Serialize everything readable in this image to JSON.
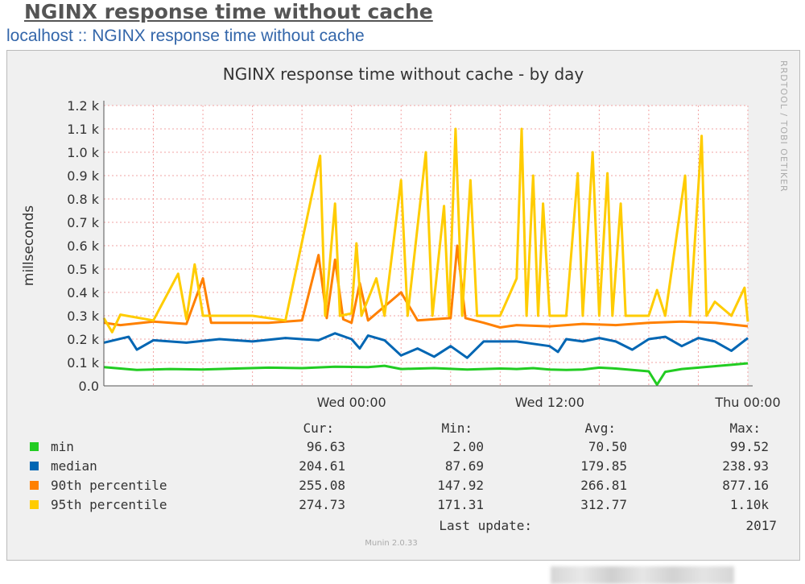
{
  "page": {
    "heading": "NGINX response time without cache",
    "breadcrumb_host": "localhost",
    "breadcrumb_sep": " :: ",
    "breadcrumb_page": "NGINX response time without cache"
  },
  "chart_data": {
    "type": "line",
    "title": "NGINX response time without cache - by day",
    "ylabel": "millseconds",
    "watermark": "RRDTOOL / TOBI OETIKER",
    "footer": "Munin 2.0.33",
    "ylim": [
      0,
      1200
    ],
    "y_ticks": [
      {
        "v": 0,
        "label": "0.0"
      },
      {
        "v": 100,
        "label": "0.1 k"
      },
      {
        "v": 200,
        "label": "0.2 k"
      },
      {
        "v": 300,
        "label": "0.3 k"
      },
      {
        "v": 400,
        "label": "0.4 k"
      },
      {
        "v": 500,
        "label": "0.5 k"
      },
      {
        "v": 600,
        "label": "0.6 k"
      },
      {
        "v": 700,
        "label": "0.7 k"
      },
      {
        "v": 800,
        "label": "0.8 k"
      },
      {
        "v": 900,
        "label": "0.9 k"
      },
      {
        "v": 1000,
        "label": "1.0 k"
      },
      {
        "v": 1100,
        "label": "1.1 k"
      },
      {
        "v": 1200,
        "label": "1.2 k"
      }
    ],
    "xlim": [
      -15,
      24
    ],
    "x_unit": "hours relative to Wed 00:00",
    "x_ticks": [
      {
        "v": 0,
        "label": "Wed 00:00"
      },
      {
        "v": 12,
        "label": "Wed 12:00"
      },
      {
        "v": 24,
        "label": "Thu 00:00"
      }
    ],
    "x_minor_step": 3,
    "series": [
      {
        "name": "min",
        "color": "#22cc22",
        "points": [
          [
            -15,
            80
          ],
          [
            -13,
            68
          ],
          [
            -11,
            72
          ],
          [
            -9,
            70
          ],
          [
            -7,
            74
          ],
          [
            -5,
            78
          ],
          [
            -3,
            76
          ],
          [
            -1,
            82
          ],
          [
            1,
            80
          ],
          [
            2,
            86
          ],
          [
            3,
            72
          ],
          [
            5,
            76
          ],
          [
            7,
            70
          ],
          [
            9,
            74
          ],
          [
            10,
            72
          ],
          [
            11,
            76
          ],
          [
            12,
            70
          ],
          [
            13,
            68
          ],
          [
            14,
            70
          ],
          [
            15,
            78
          ],
          [
            16,
            74
          ],
          [
            18,
            62
          ],
          [
            18.5,
            5
          ],
          [
            19,
            60
          ],
          [
            20,
            72
          ],
          [
            21,
            78
          ],
          [
            22,
            84
          ],
          [
            23,
            90
          ],
          [
            24,
            96.63
          ]
        ]
      },
      {
        "name": "median",
        "color": "#0066b3",
        "points": [
          [
            -15,
            185
          ],
          [
            -13.5,
            210
          ],
          [
            -13,
            155
          ],
          [
            -12,
            195
          ],
          [
            -10,
            185
          ],
          [
            -8,
            200
          ],
          [
            -6,
            190
          ],
          [
            -4,
            205
          ],
          [
            -2,
            195
          ],
          [
            -1,
            225
          ],
          [
            0,
            200
          ],
          [
            0.5,
            160
          ],
          [
            1,
            215
          ],
          [
            2,
            195
          ],
          [
            3,
            130
          ],
          [
            4,
            160
          ],
          [
            5,
            125
          ],
          [
            6,
            170
          ],
          [
            7,
            120
          ],
          [
            8,
            190
          ],
          [
            10,
            190
          ],
          [
            11,
            180
          ],
          [
            12,
            170
          ],
          [
            12.5,
            145
          ],
          [
            13,
            200
          ],
          [
            14,
            190
          ],
          [
            15,
            205
          ],
          [
            16,
            190
          ],
          [
            17,
            155
          ],
          [
            18,
            200
          ],
          [
            19,
            210
          ],
          [
            20,
            170
          ],
          [
            21,
            205
          ],
          [
            22,
            190
          ],
          [
            23,
            150
          ],
          [
            24,
            204.61
          ]
        ]
      },
      {
        "name": "90th percentile",
        "color": "#ff8000",
        "points": [
          [
            -15,
            270
          ],
          [
            -14,
            260
          ],
          [
            -12,
            275
          ],
          [
            -10,
            265
          ],
          [
            -9,
            460
          ],
          [
            -8.5,
            270
          ],
          [
            -5,
            270
          ],
          [
            -3,
            280
          ],
          [
            -2,
            560
          ],
          [
            -1.5,
            290
          ],
          [
            -1,
            540
          ],
          [
            -0.5,
            285
          ],
          [
            0,
            270
          ],
          [
            0.5,
            440
          ],
          [
            1,
            280
          ],
          [
            3,
            400
          ],
          [
            4,
            280
          ],
          [
            6,
            290
          ],
          [
            6.4,
            600
          ],
          [
            6.9,
            290
          ],
          [
            8,
            270
          ],
          [
            9,
            250
          ],
          [
            10,
            260
          ],
          [
            12,
            255
          ],
          [
            14,
            265
          ],
          [
            16,
            260
          ],
          [
            18,
            270
          ],
          [
            20,
            275
          ],
          [
            22,
            270
          ],
          [
            24,
            255.08
          ]
        ]
      },
      {
        "name": "95th percentile",
        "color": "#ffcc00",
        "points": [
          [
            -15,
            290
          ],
          [
            -14.5,
            230
          ],
          [
            -14,
            305
          ],
          [
            -12,
            280
          ],
          [
            -10.5,
            480
          ],
          [
            -10,
            285
          ],
          [
            -9.5,
            520
          ],
          [
            -9,
            300
          ],
          [
            -6,
            300
          ],
          [
            -4,
            280
          ],
          [
            -1.9,
            985
          ],
          [
            -1.6,
            300
          ],
          [
            -1,
            780
          ],
          [
            -0.7,
            300
          ],
          [
            0,
            310
          ],
          [
            0.3,
            610
          ],
          [
            0.6,
            300
          ],
          [
            1.5,
            460
          ],
          [
            2,
            300
          ],
          [
            3,
            880
          ],
          [
            3.4,
            300
          ],
          [
            4.5,
            1000
          ],
          [
            4.9,
            300
          ],
          [
            5.6,
            770
          ],
          [
            5.9,
            300
          ],
          [
            6.3,
            1100
          ],
          [
            6.7,
            300
          ],
          [
            7.2,
            880
          ],
          [
            7.6,
            300
          ],
          [
            9,
            300
          ],
          [
            10,
            460
          ],
          [
            10.3,
            1100
          ],
          [
            10.6,
            300
          ],
          [
            11,
            900
          ],
          [
            11.3,
            300
          ],
          [
            11.6,
            780
          ],
          [
            12,
            300
          ],
          [
            13,
            300
          ],
          [
            13.7,
            910
          ],
          [
            14,
            300
          ],
          [
            14.6,
            1000
          ],
          [
            15,
            300
          ],
          [
            15.5,
            910
          ],
          [
            15.8,
            300
          ],
          [
            16.3,
            780
          ],
          [
            16.6,
            300
          ],
          [
            18,
            300
          ],
          [
            18.5,
            410
          ],
          [
            19,
            300
          ],
          [
            20.2,
            900
          ],
          [
            20.5,
            300
          ],
          [
            21.2,
            1070
          ],
          [
            21.5,
            300
          ],
          [
            22,
            360
          ],
          [
            23,
            300
          ],
          [
            23.8,
            420
          ],
          [
            24,
            274.73
          ]
        ]
      }
    ],
    "legend": {
      "headers": [
        "Cur:",
        "Min:",
        "Avg:",
        "Max:"
      ],
      "rows": [
        {
          "name": "min",
          "color": "#22cc22",
          "cur": "96.63",
          "min": "2.00",
          "avg": "70.50",
          "max": "99.52"
        },
        {
          "name": "median",
          "color": "#0066b3",
          "cur": "204.61",
          "min": "87.69",
          "avg": "179.85",
          "max": "238.93"
        },
        {
          "name": "90th percentile",
          "color": "#ff8000",
          "cur": "255.08",
          "min": "147.92",
          "avg": "266.81",
          "max": "877.16"
        },
        {
          "name": "95th percentile",
          "color": "#ffcc00",
          "cur": "274.73",
          "min": "171.31",
          "avg": "312.77",
          "max": "1.10k"
        }
      ],
      "last_update_label": "Last update:",
      "last_update_year": "2017"
    }
  }
}
